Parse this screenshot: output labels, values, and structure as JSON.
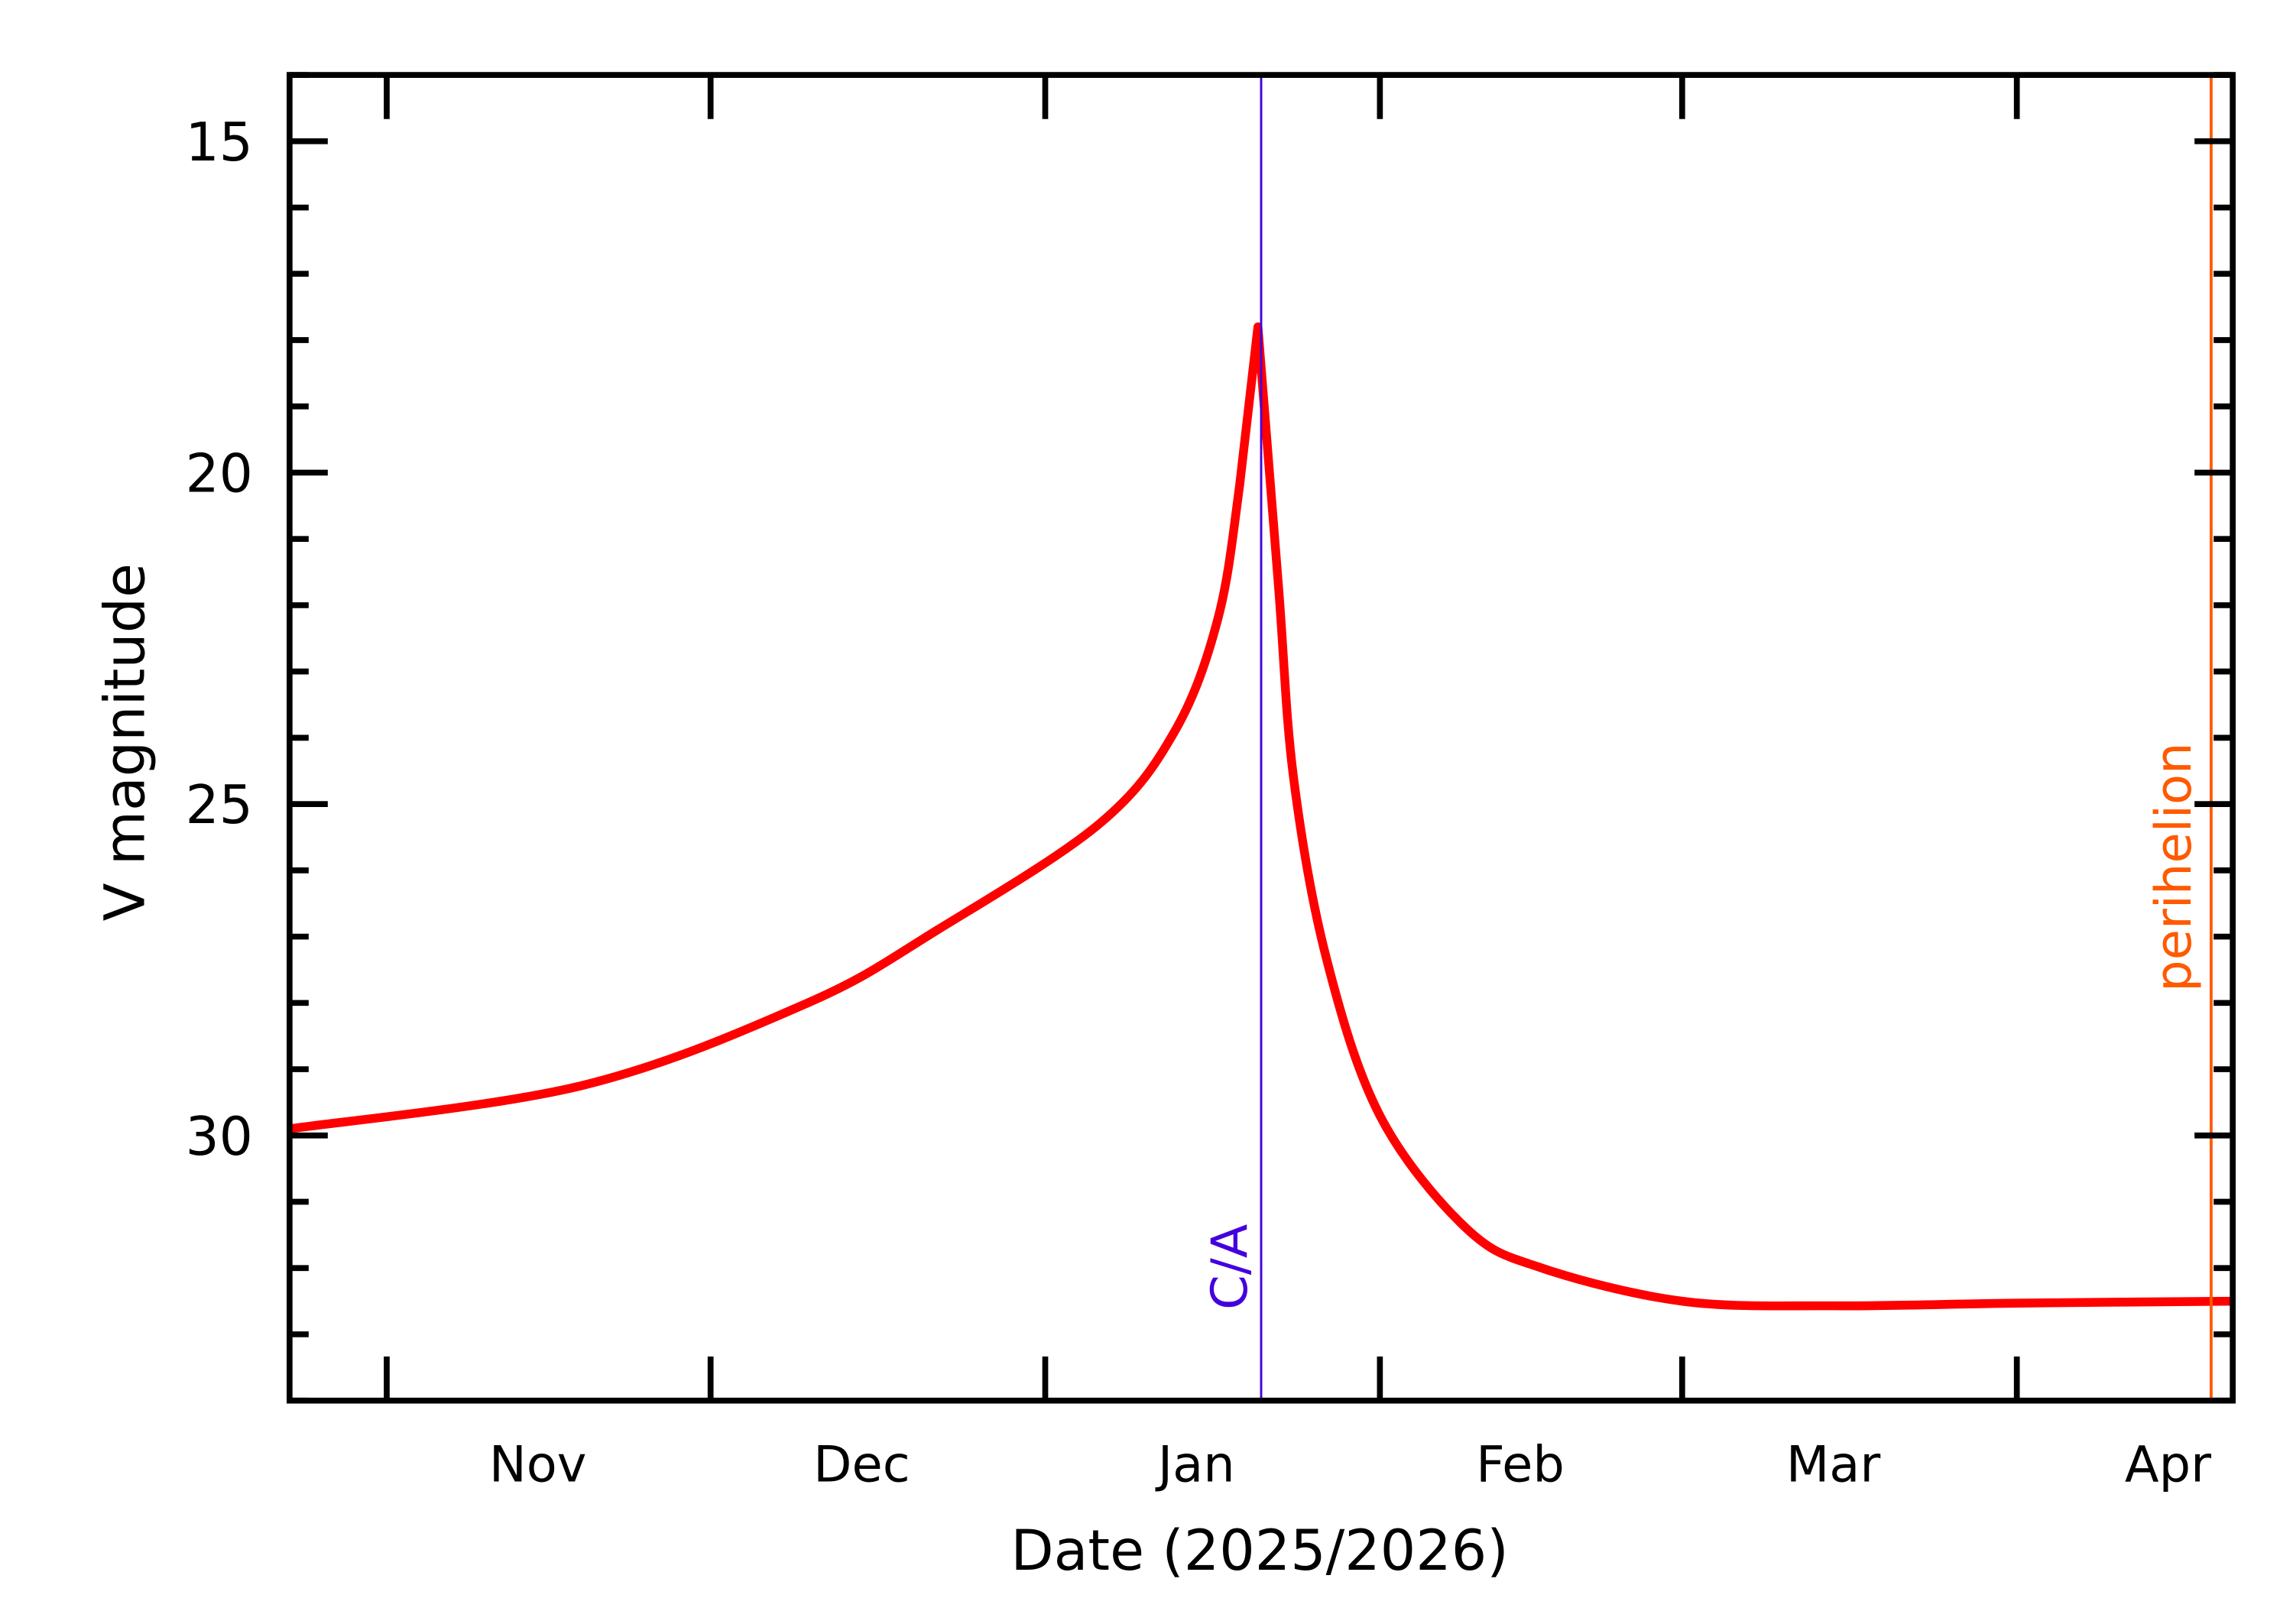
{
  "chart_data": {
    "type": "line",
    "title": "",
    "xlabel": "Date (2025/2026)",
    "ylabel": "V magnitude",
    "xlim": [
      "2025-10-23",
      "2026-04-21"
    ],
    "ylim": [
      34,
      14
    ],
    "y_inverted": true,
    "grid": false,
    "x_ticks": [
      {
        "date": "2025-11-01"
      },
      {
        "date": "2025-12-01"
      },
      {
        "date": "2026-01-01"
      },
      {
        "date": "2026-02-01"
      },
      {
        "date": "2026-03-01"
      },
      {
        "date": "2026-04-01"
      }
    ],
    "x_tick_labels": [
      {
        "label": "Nov",
        "date": "2025-11-15"
      },
      {
        "label": "Dec",
        "date": "2025-12-15"
      },
      {
        "label": "Jan",
        "date": "2026-01-15"
      },
      {
        "label": "Feb",
        "date": "2026-02-14"
      },
      {
        "label": "Mar",
        "date": "2026-03-15"
      },
      {
        "label": "Apr",
        "date": "2026-04-15"
      }
    ],
    "y_major_ticks": [
      15,
      20,
      25,
      30
    ],
    "y_tick_labels": [
      "15",
      "20",
      "25",
      "30"
    ],
    "y_minor_step": 1,
    "series": [
      {
        "color": "#ff0000",
        "x": [
          "2025-10-23",
          "2025-11-19",
          "2025-12-10",
          "2025-12-22",
          "2026-01-06",
          "2026-01-13",
          "2026-01-17",
          "2026-01-19",
          "2026-01-20.7",
          "2026-01-22.6",
          "2026-01-24",
          "2026-01-27",
          "2026-02-01",
          "2026-02-09",
          "2026-02-16",
          "2026-03-01",
          "2026-03-15",
          "2026-04-01",
          "2026-04-21"
        ],
        "y": [
          29.9,
          29.25,
          28.0,
          26.9,
          25.3,
          23.9,
          22.2,
          20.2,
          17.8,
          21.7,
          24.6,
          27.3,
          29.7,
          31.4,
          32.0,
          32.5,
          32.57,
          32.53,
          32.5
        ]
      }
    ],
    "annotations": [
      {
        "label": "C/A",
        "date": "2026-01-21",
        "color": "#4400dd"
      },
      {
        "label": "perihelion",
        "date": "2026-04-19",
        "color": "#ff5a00"
      }
    ]
  }
}
